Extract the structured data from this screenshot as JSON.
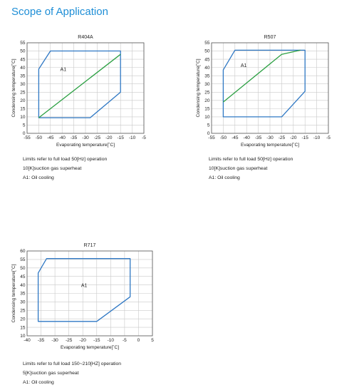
{
  "page": {
    "title": "Scope of Application"
  },
  "chart_data": [
    {
      "type": "line",
      "title": "R404A",
      "xlabel": "Evaporating temperature[˚C]",
      "ylabel": "Condensing temperature[˚C]",
      "xlim": [
        -55,
        -5
      ],
      "ylim": [
        0,
        55
      ],
      "xticks": [
        -55,
        -50,
        -45,
        -40,
        -35,
        -30,
        -25,
        -20,
        -15,
        -10,
        -5
      ],
      "yticks": [
        0,
        5,
        10,
        15,
        20,
        25,
        30,
        35,
        40,
        45,
        50,
        55
      ],
      "grid": true,
      "region_label": "A1",
      "series": [
        {
          "color": "#2f78c4",
          "closed": true,
          "x": [
            -50,
            -45,
            -15,
            -15,
            -28,
            -50
          ],
          "y": [
            39,
            50,
            50,
            25,
            9.5,
            9.5
          ]
        },
        {
          "color": "#2ca043",
          "closed": false,
          "x": [
            -50,
            -15
          ],
          "y": [
            9.5,
            48
          ]
        }
      ],
      "notes": [
        "Limits refer to full load 50[Hz] operation",
        "10[K]suction gas superheat",
        "A1: Oil cooling"
      ]
    },
    {
      "type": "line",
      "title": "R507",
      "xlabel": "Evaporating temperature[˚C]",
      "ylabel": "Condensing temperature[˚C]",
      "xlim": [
        -55,
        -5
      ],
      "ylim": [
        0,
        55
      ],
      "xticks": [
        -55,
        -50,
        -45,
        -40,
        -35,
        -30,
        -25,
        -20,
        -15,
        -10,
        -5
      ],
      "yticks": [
        0,
        5,
        10,
        15,
        20,
        25,
        30,
        35,
        40,
        45,
        50,
        55
      ],
      "grid": true,
      "region_label": "A1",
      "series": [
        {
          "color": "#2f78c4",
          "closed": true,
          "x": [
            -50,
            -45,
            -15,
            -15,
            -25,
            -50
          ],
          "y": [
            38.5,
            50.5,
            50.5,
            25.5,
            10,
            10
          ]
        },
        {
          "color": "#2ca043",
          "closed": false,
          "x": [
            -50,
            -25,
            -17
          ],
          "y": [
            19,
            48,
            50.5
          ]
        }
      ],
      "notes": [
        "Limits refer to full load 50[Hz] operation",
        "10[K]suction gas superheat",
        "A1: Oil cooling"
      ]
    },
    {
      "type": "line",
      "title": "R717",
      "xlabel": "Evaporating temperature[˚C]",
      "ylabel": "Condensing temperature[˚C]",
      "xlim": [
        -40,
        5
      ],
      "ylim": [
        10,
        60
      ],
      "xticks": [
        -40,
        -35,
        -30,
        -25,
        -20,
        -15,
        -10,
        -5,
        0,
        5
      ],
      "yticks": [
        10,
        15,
        20,
        25,
        30,
        35,
        40,
        45,
        50,
        55,
        60
      ],
      "grid": true,
      "region_label": "A1",
      "series": [
        {
          "color": "#2f78c4",
          "closed": true,
          "x": [
            -36,
            -33,
            -3,
            -3,
            -15,
            -36
          ],
          "y": [
            47,
            55.5,
            55.5,
            33,
            18.5,
            18.5
          ]
        }
      ],
      "notes": [
        "Limits refer to full load 150~210[HZ] operation",
        "5[K]suction gas superheat",
        "A1: Oil cooling"
      ]
    }
  ]
}
